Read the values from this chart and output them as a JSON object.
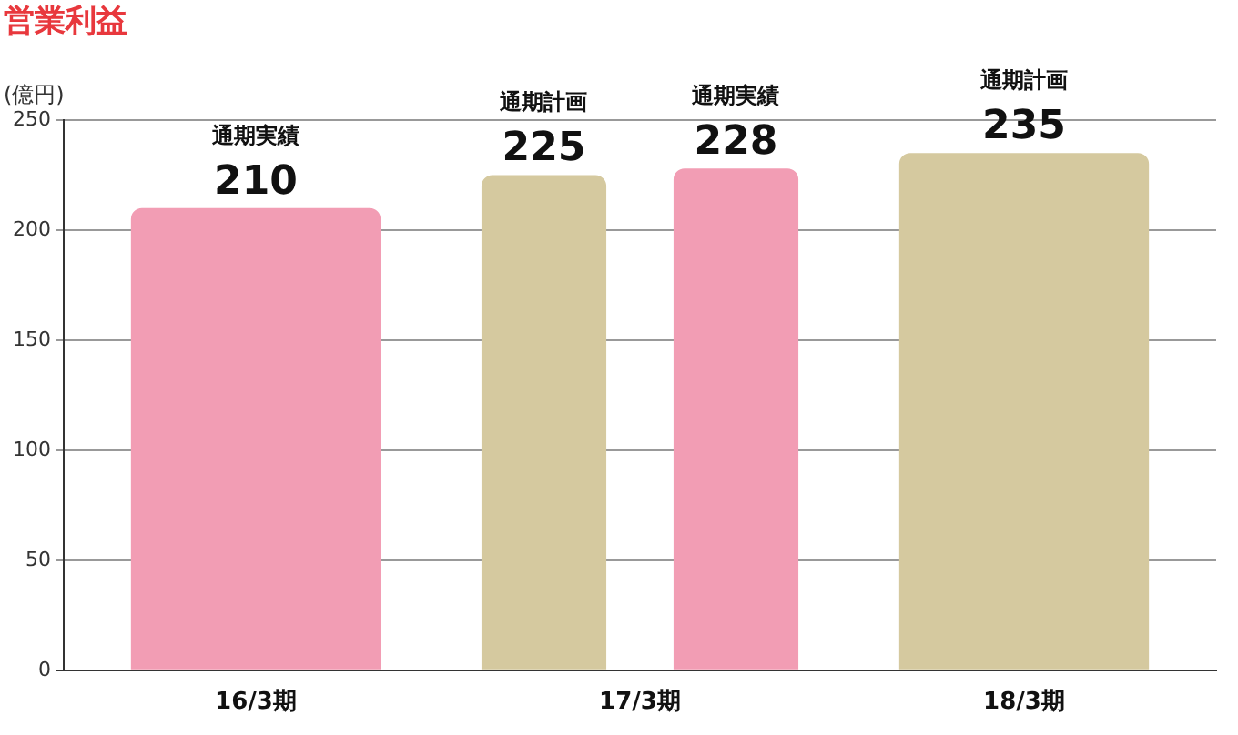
{
  "chart_data": {
    "type": "bar",
    "title": "営業利益",
    "ylabel": "(億円)",
    "categories": [
      "16/3期",
      "17/3期",
      "18/3期"
    ],
    "series": [
      {
        "name": "通期計画",
        "color": "#d5c99f",
        "values": [
          null,
          225,
          235
        ]
      },
      {
        "name": "通期実績",
        "color": "#f29db4",
        "values": [
          210,
          228,
          null
        ]
      }
    ],
    "ylim": [
      0,
      250
    ],
    "yticks": [
      0,
      50,
      100,
      150,
      200,
      250
    ],
    "grid": "y",
    "legend": false,
    "data_labels": true
  }
}
